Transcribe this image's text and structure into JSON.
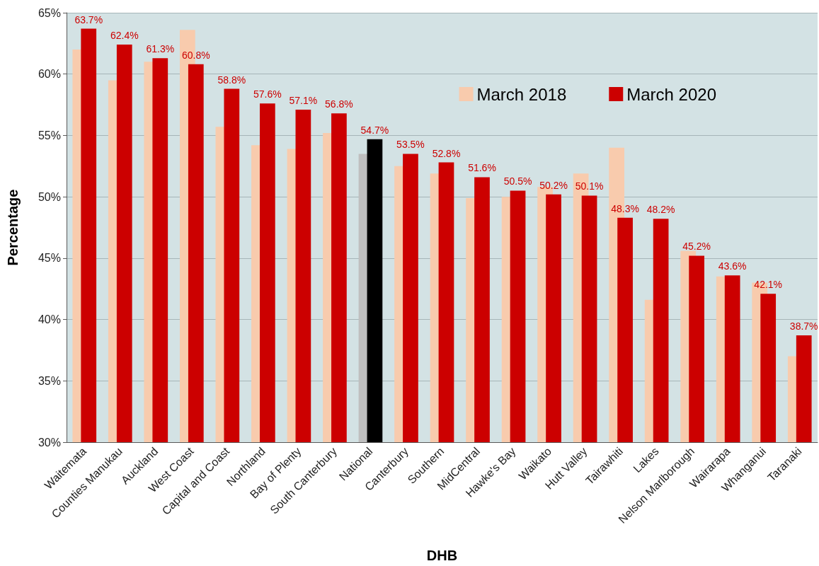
{
  "chart_data": {
    "type": "bar",
    "xlabel": "DHB",
    "ylabel": "Percentage",
    "categories": [
      "Waitemata",
      "Counties Manukau",
      "Auckland",
      "West Coast",
      "Capital and Coast",
      "Northland",
      "Bay of Plenty",
      "South Canterbury",
      "National",
      "Canterbury",
      "Southern",
      "MidCentral",
      "Hawke's Bay",
      "Waikato",
      "Hutt Valley",
      "Tairawhiti",
      "Lakes",
      "Nelson Marlborough",
      "Wairarapa",
      "Whanganui",
      "Taranaki"
    ],
    "series": [
      {
        "name": "March 2018",
        "color": "#f8cbad",
        "colors": [
          "#f8cbad",
          "#f8cbad",
          "#f8cbad",
          "#f8cbad",
          "#f8cbad",
          "#f8cbad",
          "#f8cbad",
          "#f8cbad",
          "#bfbfbf",
          "#f8cbad",
          "#f8cbad",
          "#f8cbad",
          "#f8cbad",
          "#f8cbad",
          "#f8cbad",
          "#f8cbad",
          "#f8cbad",
          "#f8cbad",
          "#f8cbad",
          "#f8cbad",
          "#f8cbad"
        ],
        "values": [
          62.0,
          59.5,
          61.0,
          63.6,
          55.7,
          54.2,
          53.9,
          55.2,
          53.5,
          52.5,
          51.9,
          49.9,
          50.0,
          50.8,
          51.9,
          54.0,
          41.6,
          45.6,
          43.5,
          43.0,
          37.0
        ]
      },
      {
        "name": "March 2020",
        "color": "#cc0000",
        "colors": [
          "#cc0000",
          "#cc0000",
          "#cc0000",
          "#cc0000",
          "#cc0000",
          "#cc0000",
          "#cc0000",
          "#cc0000",
          "#000000",
          "#cc0000",
          "#cc0000",
          "#cc0000",
          "#cc0000",
          "#cc0000",
          "#cc0000",
          "#cc0000",
          "#cc0000",
          "#cc0000",
          "#cc0000",
          "#cc0000",
          "#cc0000"
        ],
        "values": [
          63.7,
          62.4,
          61.3,
          60.8,
          58.8,
          57.6,
          57.1,
          56.8,
          54.7,
          53.5,
          52.8,
          51.6,
          50.5,
          50.2,
          50.1,
          48.3,
          48.2,
          45.2,
          43.6,
          42.1,
          38.7
        ],
        "value_labels": [
          "63.7%",
          "62.4%",
          "61.3%",
          "60.8%",
          "58.8%",
          "57.6%",
          "57.1%",
          "56.8%",
          "54.7%",
          "53.5%",
          "52.8%",
          "51.6%",
          "50.5%",
          "50.2%",
          "50.1%",
          "48.3%",
          "48.2%",
          "45.2%",
          "43.6%",
          "42.1%",
          "38.7%"
        ]
      }
    ],
    "ylim": [
      30,
      65
    ],
    "yticks": [
      {
        "value": 30,
        "label": "30%"
      },
      {
        "value": 35,
        "label": "35%"
      },
      {
        "value": 40,
        "label": "40%"
      },
      {
        "value": 45,
        "label": "45%"
      },
      {
        "value": 50,
        "label": "50%"
      },
      {
        "value": 55,
        "label": "55%"
      },
      {
        "value": 60,
        "label": "60%"
      },
      {
        "value": 65,
        "label": "65%"
      }
    ],
    "grid": "y",
    "legend": "top right"
  }
}
